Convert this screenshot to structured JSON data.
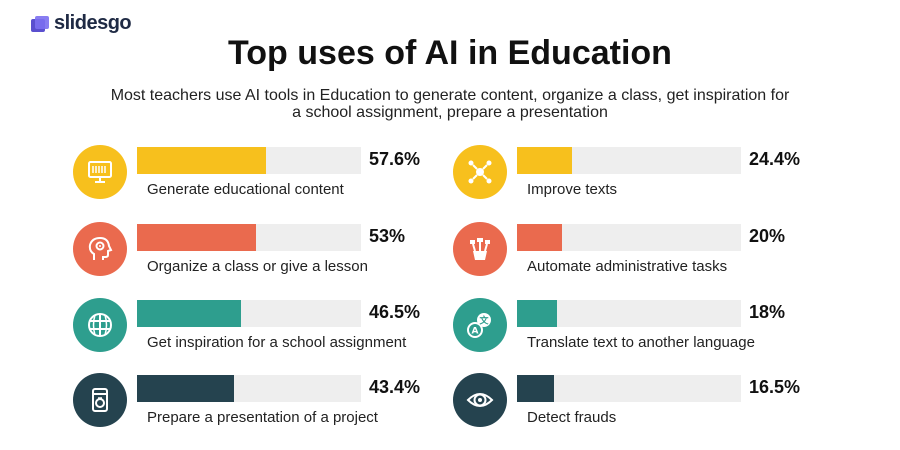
{
  "brand": {
    "name": "slidesgo"
  },
  "colors": {
    "yellow": "#f7c01d",
    "coral": "#ea6a4e",
    "teal": "#2e9e8e",
    "navy": "#25434f",
    "track": "#eeeeee"
  },
  "chart_data": {
    "type": "bar",
    "orientation": "horizontal",
    "title": "Top uses of AI in Education",
    "subtitle": "Most teachers use AI tools in Education to generate content, organize a class, get inspiration for a school assignment, prepare a presentation",
    "xlim": [
      0,
      100
    ],
    "unit": "%",
    "items": [
      {
        "label": "Generate educational content",
        "value": 57.6,
        "display": "57.6%",
        "color": "#f7c01d",
        "icon": "monitor-icon"
      },
      {
        "label": "Organize a class or give a lesson",
        "value": 53,
        "display": "53%",
        "color": "#ea6a4e",
        "icon": "head-gear-icon"
      },
      {
        "label": "Get inspiration for a school assignment",
        "value": 46.5,
        "display": "46.5%",
        "color": "#2e9e8e",
        "icon": "globe-icon"
      },
      {
        "label": "Prepare a presentation of a project",
        "value": 43.4,
        "display": "43.4%",
        "color": "#25434f",
        "icon": "flask-icon"
      },
      {
        "label": "Improve texts",
        "value": 24.4,
        "display": "24.4%",
        "color": "#f7c01d",
        "icon": "network-icon"
      },
      {
        "label": "Automate administrative tasks",
        "value": 20,
        "display": "20%",
        "color": "#ea6a4e",
        "icon": "plant-pot-icon"
      },
      {
        "label": "Translate text to another language",
        "value": 18,
        "display": "18%",
        "color": "#2e9e8e",
        "icon": "translate-icon"
      },
      {
        "label": "Detect frauds",
        "value": 16.5,
        "display": "16.5%",
        "color": "#25434f",
        "icon": "eye-icon"
      }
    ]
  }
}
